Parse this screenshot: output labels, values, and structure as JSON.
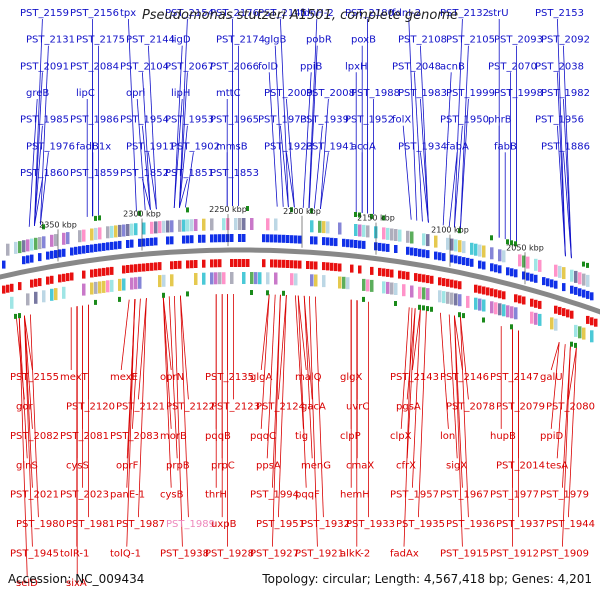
{
  "title": "Pseudomonas stutzeri A1501, complete genome",
  "footer": {
    "accession": "Accession: NC_009434",
    "info": "Topology: circular; Length: 4,567,418 bp; Genes: 4,201"
  },
  "colors": {
    "forward_label": "#1010c8",
    "reverse_label": "#d80000",
    "highlight_label": "#ee88bb",
    "backbone": "#888888",
    "tick": "#1a8a1a"
  },
  "scale_labels": [
    "2050 kbp",
    "2100 kbp",
    "2150 kbp",
    "2200 kbp",
    "2250 kbp",
    "2300 kbp",
    "2350 kbp"
  ],
  "top_labels": [
    "PST_2159",
    "PST_2156",
    "tpx",
    "PST_2154",
    "PST_2176",
    "PST_2145",
    "fdnH-2",
    "PST_2180",
    "fdnI-2",
    "PST_2132",
    "strU",
    "PST_2153",
    "PST_2131",
    "PST_2175",
    "PST_2144",
    "ligD",
    "PST_2174",
    "glgB",
    "pobR",
    "poxB",
    "PST_2108",
    "PST_2105",
    "PST_2093",
    "PST_2092",
    "PST_2091",
    "PST_2084",
    "PST_2104",
    "PST_2067",
    "PST_2066",
    "folD",
    "ppiB",
    "lpxH",
    "PST_2048",
    "acnB",
    "PST_2070",
    "PST_2038",
    "greB",
    "lipC",
    "opri",
    "lipH",
    "mttC",
    "PST_2009",
    "PST_2008",
    "PST_1988",
    "PST_1983",
    "PST_1999",
    "PST_1998",
    "PST_1982",
    "PST_1985",
    "PST_1986",
    "PST_1954",
    "PST_1953",
    "PST_1965",
    "PST_1973",
    "PST_1939",
    "PST_1952",
    "folX",
    "PST_1950",
    "phrB",
    "PST_1956",
    "PST_1976",
    "fadB1x",
    "PST_1911",
    "PST_1902",
    "mmsB",
    "PST_1923",
    "PST_1941",
    "acdA",
    "PST_1934",
    "fabA",
    "fabB",
    "PST_1886",
    "PST_1860",
    "PST_1859",
    "PST_1852",
    "PST_1851",
    "PST_1853"
  ],
  "bottom_labels": [
    "PST_2155",
    "mexT",
    "mexE",
    "oprN",
    "PST_2135",
    "glgA",
    "malQ",
    "glgX",
    "PST_2143",
    "PST_2146",
    "PST_2147",
    "galU",
    "gor",
    "PST_2120",
    "PST_2121",
    "PST_2122",
    "PST_2123",
    "PST_2124",
    "gacA",
    "uvrC",
    "pgsA",
    "PST_2078",
    "PST_2079",
    "PST_2080",
    "PST_2082",
    "PST_2081",
    "PST_2083",
    "morB",
    "pqqB",
    "pqqC",
    "tig",
    "clpP",
    "clpX",
    "lon",
    "hupB",
    "ppiD",
    "glnS",
    "cysS",
    "oprF",
    "prpB",
    "prpC",
    "ppsA",
    "menG",
    "cmaX",
    "cfrX",
    "sigX",
    "PST_2014",
    "tesA",
    "PST_2021",
    "PST_2023",
    "panE-1",
    "cysB",
    "thrH",
    "PST_1994",
    "pqqF",
    "hemH",
    "PST_1957",
    "PST_1967",
    "PST_1977",
    "PST_1979",
    "PST_1980",
    "PST_1981",
    "PST_1987",
    "PST_1989",
    "uxpB",
    "PST_1951",
    "PST_1932",
    "PST_1933",
    "PST_1935",
    "PST_1936",
    "PST_1937",
    "PST_1944",
    "PST_1945",
    "tolR-1",
    "tolQ-1",
    "PST_1938",
    "PST_1928",
    "PST_1927",
    "PST_1921",
    "alkK-2",
    "fadAx",
    "PST_1915",
    "PST_1912",
    "PST_1909",
    "selD",
    "sixA"
  ]
}
